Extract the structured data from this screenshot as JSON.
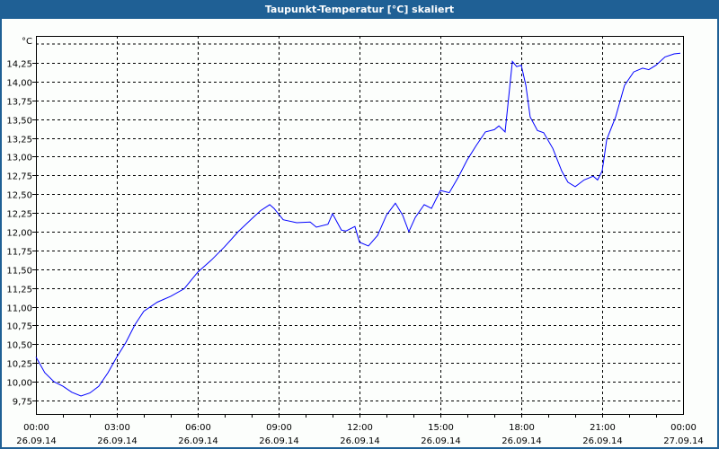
{
  "window": {
    "title": "Taupunkt-Temperatur [°C] skaliert"
  },
  "chart_data": {
    "type": "line",
    "title": "Taupunkt-Temperatur [°C] skaliert",
    "ylabel": "°C",
    "xlabel": "",
    "ylim": [
      9.57,
      14.61
    ],
    "xlim_hours": [
      0,
      24
    ],
    "grid": true,
    "line_color": "#0000ff",
    "y_ticks": [
      "9,75",
      "10,00",
      "10,25",
      "10,50",
      "10,75",
      "11,00",
      "11,25",
      "11,50",
      "11,75",
      "12,00",
      "12,25",
      "12,50",
      "12,75",
      "13,00",
      "13,25",
      "13,50",
      "13,75",
      "14,00",
      "14,25"
    ],
    "y_tick_values": [
      9.75,
      10,
      10.25,
      10.5,
      10.75,
      11,
      11.25,
      11.5,
      11.75,
      12,
      12.25,
      12.5,
      12.75,
      13,
      13.25,
      13.5,
      13.75,
      14,
      14.25
    ],
    "x_ticks": [
      {
        "time": "00:00",
        "date": "26.09.14",
        "hour": 0
      },
      {
        "time": "03:00",
        "date": "26.09.14",
        "hour": 3
      },
      {
        "time": "06:00",
        "date": "26.09.14",
        "hour": 6
      },
      {
        "time": "09:00",
        "date": "26.09.14",
        "hour": 9
      },
      {
        "time": "12:00",
        "date": "26.09.14",
        "hour": 12
      },
      {
        "time": "15:00",
        "date": "26.09.14",
        "hour": 15
      },
      {
        "time": "18:00",
        "date": "26.09.14",
        "hour": 18
      },
      {
        "time": "21:00",
        "date": "26.09.14",
        "hour": 21
      },
      {
        "time": "00:00",
        "date": "27.09.14",
        "hour": 24
      }
    ],
    "series": [
      {
        "name": "Taupunkt-Temperatur",
        "x": [
          0,
          0.33,
          0.67,
          1,
          1.33,
          1.67,
          2,
          2.33,
          2.67,
          3,
          3.33,
          3.67,
          4,
          4.5,
          5,
          5.5,
          6,
          6.5,
          7,
          7.5,
          8,
          8.33,
          8.67,
          8.83,
          9.17,
          9.67,
          10.17,
          10.4,
          10.83,
          11,
          11.33,
          11.5,
          11.83,
          12,
          12.33,
          12.67,
          13,
          13.33,
          13.6,
          13.83,
          14.07,
          14.4,
          14.67,
          15,
          15.33,
          15.67,
          16,
          16.33,
          16.67,
          17,
          17.17,
          17.4,
          17.67,
          17.83,
          18,
          18.17,
          18.33,
          18.6,
          18.83,
          19.17,
          19.5,
          19.73,
          20,
          20.33,
          20.67,
          20.83,
          21,
          21.17,
          21.5,
          21.83,
          22.17,
          22.5,
          22.73,
          23,
          23.33,
          23.67,
          23.9
        ],
        "values": [
          10.33,
          10.12,
          10.0,
          9.94,
          9.86,
          9.81,
          9.85,
          9.94,
          10.12,
          10.33,
          10.52,
          10.76,
          10.94,
          11.06,
          11.14,
          11.24,
          11.46,
          11.62,
          11.8,
          12.0,
          12.17,
          12.28,
          12.36,
          12.31,
          12.16,
          12.12,
          12.13,
          12.06,
          12.1,
          12.24,
          12.02,
          12.01,
          12.07,
          11.86,
          11.81,
          11.95,
          12.22,
          12.38,
          12.22,
          12.0,
          12.19,
          12.36,
          12.31,
          12.55,
          12.52,
          12.73,
          12.96,
          13.15,
          13.33,
          13.36,
          13.41,
          13.33,
          14.27,
          14.2,
          14.22,
          13.95,
          13.53,
          13.35,
          13.32,
          13.11,
          12.81,
          12.66,
          12.6,
          12.69,
          12.74,
          12.69,
          12.81,
          13.23,
          13.53,
          13.95,
          14.13,
          14.18,
          14.16,
          14.22,
          14.33,
          14.37,
          14.38
        ]
      }
    ]
  }
}
